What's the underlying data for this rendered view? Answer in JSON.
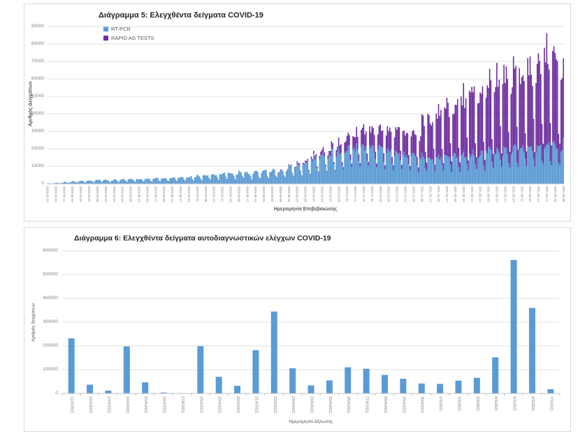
{
  "page": {
    "background": "#ffffff",
    "panel_border": "#d9d9d9"
  },
  "colors": {
    "rt_pcr": "#5B9BD5",
    "rapid_ag": "#7030A0",
    "gridline": "#e2e2e2",
    "axis_line": "#bfbfbf",
    "tick_text": "#7f7f7f",
    "title_text": "#262626"
  },
  "chart_data": [
    {
      "type": "bar",
      "stacked": true,
      "granularity": "daily",
      "title": "Διάγραμμα 5: Ελεγχθέντα δείγματα COVID-19",
      "xlabel": "Ημερομηνία Επιβεβαιώσης",
      "ylabel": "Αριθμός Δειγμάτων",
      "ylim": [
        0,
        90000
      ],
      "ytick_labels": [
        "0",
        "10000",
        "20000",
        "30000",
        "40000",
        "50000",
        "60000",
        "70000",
        "80000",
        "90000"
      ],
      "legend_position": "top-left",
      "x_tick_labels": [
        "2020-02-26",
        "2020-03-04",
        "2020-03-11",
        "2020-03-18",
        "2020-03-25",
        "2020-04-01",
        "2020-04-08",
        "2020-04-15",
        "2020-04-22",
        "2020-04-29",
        "2020-05-06",
        "2020-05-13",
        "2020-05-20",
        "2020-05-27",
        "2020-06-03",
        "2020-06-10",
        "2020-06-17",
        "2020-06-24",
        "2020-07-01",
        "2020-07-08",
        "2020-07-15",
        "2020-07-22",
        "2020-07-29",
        "2020-08-05",
        "2020-08-12",
        "2020-08-19",
        "2020-08-26",
        "2020-09-02",
        "2020-09-09",
        "2020-09-16",
        "2020-09-23",
        "2020-09-30",
        "2020-10-07",
        "2020-10-14",
        "2020-10-21",
        "2020-10-28",
        "2020-11-04",
        "2020-11-11",
        "2020-11-18",
        "2020-11-25",
        "2020-12-02",
        "2020-12-09",
        "2020-12-16",
        "2020-12-23",
        "2020-12-30",
        "2021-01-06",
        "2021-01-13",
        "2021-01-20",
        "2021-01-27",
        "2021-02-03",
        "2021-02-10",
        "2021-02-17",
        "2021-02-24",
        "2021-03-03",
        "2021-03-10",
        "2021-03-17",
        "2021-03-24",
        "2021-03-31",
        "2021-04-07",
        "2021-04-14",
        "2021-04-21",
        "2021-04-28",
        "2021-05-05"
      ],
      "series": [
        {
          "name": "RT-PCR",
          "color": "#5B9BD5",
          "weekly_weekday_level": [
            300,
            600,
            1000,
            1500,
            1800,
            2100,
            2300,
            2200,
            2400,
            2600,
            2800,
            2700,
            3000,
            3300,
            3500,
            3600,
            3900,
            4200,
            4800,
            5200,
            5600,
            6000,
            6300,
            6800,
            6400,
            7100,
            7400,
            7800,
            8600,
            10000,
            11500,
            13500,
            16000,
            17000,
            18500,
            19500,
            21000,
            21500,
            21000,
            20500,
            20000,
            19500,
            19000,
            17500,
            15500,
            16500,
            16000,
            16000,
            16500,
            17000,
            17500,
            18000,
            18500,
            19000,
            19500,
            20000,
            20500,
            21000,
            22000,
            23000,
            23500,
            23000,
            24000
          ],
          "weekday_profile": [
            1.0,
            0.99,
            0.95,
            0.62,
            0.45,
            0.93,
            0.97
          ]
        },
        {
          "name": "RAPID AG TESTS",
          "color": "#7030A0",
          "weekly_weekday_level": [
            0,
            0,
            0,
            0,
            0,
            0,
            0,
            0,
            0,
            0,
            0,
            0,
            0,
            0,
            0,
            0,
            0,
            0,
            0,
            0,
            0,
            0,
            0,
            0,
            0,
            0,
            0,
            0,
            300,
            500,
            800,
            1200,
            2000,
            2500,
            3500,
            5500,
            7500,
            9000,
            10500,
            11500,
            12000,
            12500,
            13500,
            14000,
            12000,
            23000,
            23500,
            26000,
            28000,
            31000,
            33500,
            36000,
            38500,
            41000,
            43000,
            44000,
            45500,
            48000,
            50000,
            52000,
            54000,
            52000,
            56000
          ],
          "weekday_profile": [
            1.0,
            0.97,
            0.92,
            0.38,
            0.2,
            0.95,
            0.93
          ]
        }
      ]
    },
    {
      "type": "bar",
      "stacked": false,
      "title": "Διάγραμμα 6: Ελεγχθέντα δείγματα αυτοδιαγνωστικών ελέγχων COVID-19",
      "xlabel": "Ημερομηνία Δήλωσης",
      "ylabel": "Αριθμός δειγμάτων",
      "ylim": [
        0,
        600000
      ],
      "ytick_labels": [
        "0",
        "100000",
        "200000",
        "300000",
        "400000",
        "500000",
        "600000"
      ],
      "bar_color": "#5B9BD5",
      "categories": [
        "11/4/2021",
        "12/4/2021",
        "13/4/2021",
        "14/4/2021",
        "15/4/2021",
        "16/4/2021",
        "17/4/2021",
        "18/4/2021",
        "19/4/2021",
        "20/4/2021",
        "21/4/2021",
        "22/4/2021",
        "23/4/2021",
        "24/4/2021",
        "25/4/2021",
        "26/4/2021",
        "27/4/2021",
        "28/4/2021",
        "29/4/2021",
        "30/4/2021",
        "1/5/2021",
        "2/5/2021",
        "3/5/2021",
        "4/5/2021",
        "5/5/2021",
        "6/5/2021",
        "7/5/2021"
      ],
      "values": [
        232000,
        37000,
        12000,
        198000,
        47000,
        4000,
        1000,
        199000,
        70000,
        32000,
        182000,
        345000,
        106000,
        34000,
        55000,
        110000,
        104000,
        78000,
        62000,
        42000,
        40000,
        54000,
        66000,
        152000,
        562000,
        360000,
        18000
      ]
    }
  ]
}
